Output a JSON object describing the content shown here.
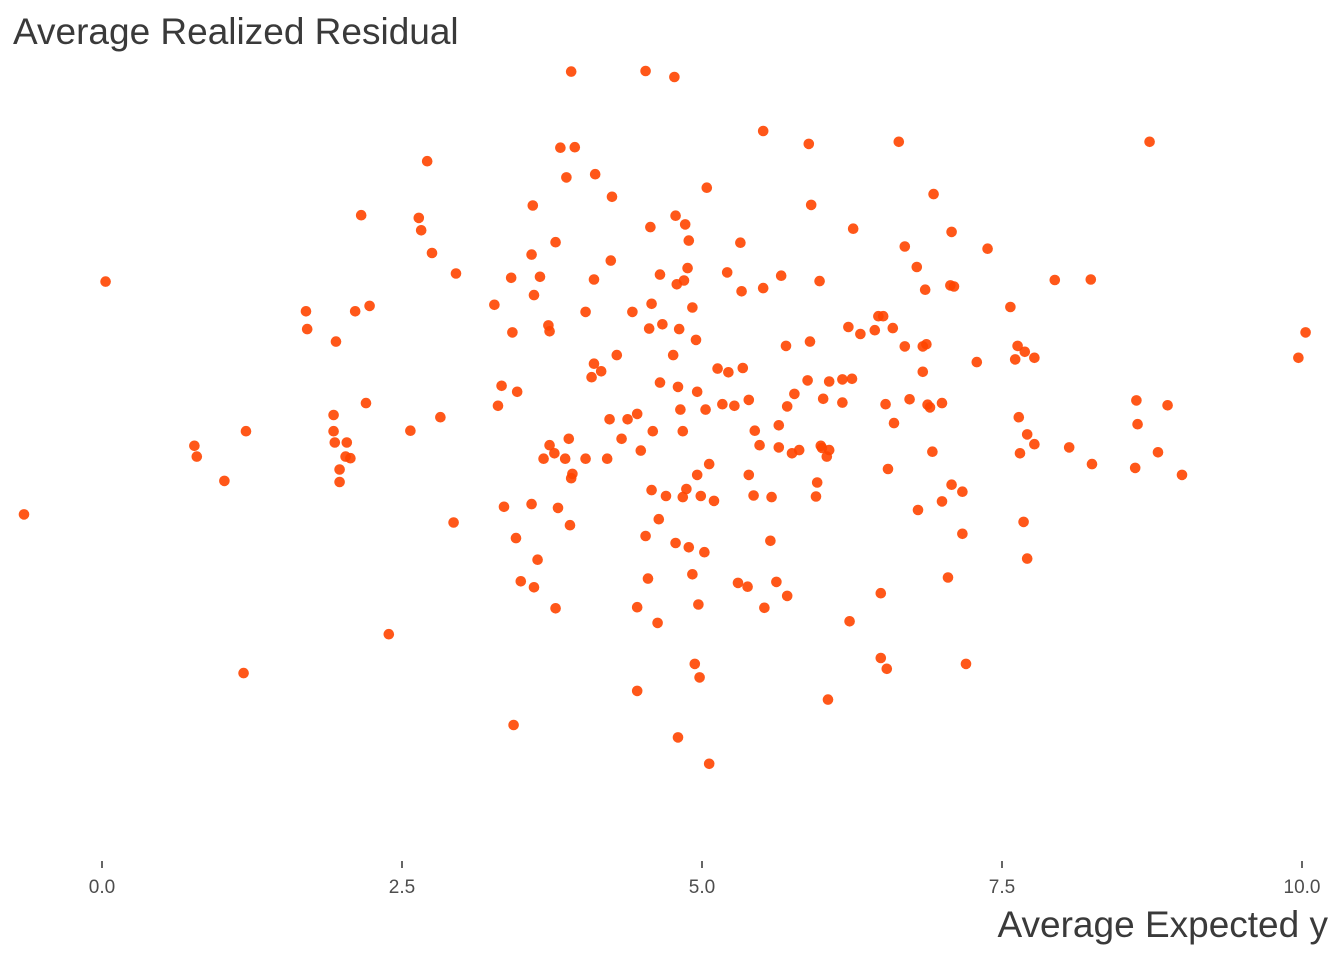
{
  "chart_data": {
    "type": "scatter",
    "title": "Average Realized Residual",
    "xlabel": "Average Expected y",
    "ylabel": "",
    "xlim": [
      -0.85,
      10.35
    ],
    "ylim": [
      -0.5,
      14.5
    ],
    "x_ticks": [
      0,
      2.5,
      5,
      7.5,
      10
    ],
    "x_tick_labels": [
      "0.0",
      "2.5",
      "5.0",
      "7.5",
      "10.0"
    ],
    "grid": false,
    "point_color": "#FF4500",
    "points": [
      [
        3.91,
        13.86
      ],
      [
        4.53,
        13.87
      ],
      [
        4.77,
        13.76
      ],
      [
        5.51,
        12.76
      ],
      [
        5.89,
        12.52
      ],
      [
        6.64,
        12.56
      ],
      [
        8.73,
        12.56
      ],
      [
        3.82,
        12.45
      ],
      [
        3.94,
        12.46
      ],
      [
        2.71,
        12.2
      ],
      [
        3.87,
        11.9
      ],
      [
        4.11,
        11.96
      ],
      [
        5.04,
        11.71
      ],
      [
        6.93,
        11.59
      ],
      [
        4.25,
        11.54
      ],
      [
        3.59,
        11.38
      ],
      [
        5.91,
        11.39
      ],
      [
        2.16,
        11.2
      ],
      [
        2.64,
        11.15
      ],
      [
        4.78,
        11.19
      ],
      [
        4.86,
        11.03
      ],
      [
        4.57,
        10.98
      ],
      [
        6.26,
        10.95
      ],
      [
        2.66,
        10.92
      ],
      [
        3.78,
        10.7
      ],
      [
        4.89,
        10.73
      ],
      [
        5.32,
        10.69
      ],
      [
        7.08,
        10.89
      ],
      [
        6.69,
        10.62
      ],
      [
        7.38,
        10.58
      ],
      [
        2.75,
        10.5
      ],
      [
        3.58,
        10.47
      ],
      [
        4.24,
        10.36
      ],
      [
        4.88,
        10.22
      ],
      [
        6.79,
        10.24
      ],
      [
        2.95,
        10.12
      ],
      [
        3.41,
        10.04
      ],
      [
        3.65,
        10.06
      ],
      [
        4.1,
        10.01
      ],
      [
        4.65,
        10.1
      ],
      [
        4.85,
        9.99
      ],
      [
        5.21,
        10.14
      ],
      [
        5.66,
        10.08
      ],
      [
        5.98,
        9.98
      ],
      [
        0.03,
        9.97
      ],
      [
        7.07,
        9.9
      ],
      [
        7.94,
        10.0
      ],
      [
        8.24,
        10.01
      ],
      [
        4.79,
        9.92
      ],
      [
        5.33,
        9.79
      ],
      [
        5.51,
        9.85
      ],
      [
        6.86,
        9.82
      ],
      [
        7.1,
        9.88
      ],
      [
        3.6,
        9.72
      ],
      [
        4.58,
        9.56
      ],
      [
        3.27,
        9.54
      ],
      [
        4.03,
        9.41
      ],
      [
        4.42,
        9.41
      ],
      [
        4.92,
        9.49
      ],
      [
        7.57,
        9.5
      ],
      [
        1.7,
        9.42
      ],
      [
        2.11,
        9.42
      ],
      [
        2.23,
        9.52
      ],
      [
        6.47,
        9.33
      ],
      [
        6.51,
        9.33
      ],
      [
        1.71,
        9.09
      ],
      [
        3.72,
        9.16
      ],
      [
        3.42,
        9.03
      ],
      [
        3.73,
        9.05
      ],
      [
        4.67,
        9.18
      ],
      [
        4.56,
        9.1
      ],
      [
        4.81,
        9.09
      ],
      [
        6.22,
        9.13
      ],
      [
        6.44,
        9.07
      ],
      [
        6.59,
        9.11
      ],
      [
        6.32,
        9.0
      ],
      [
        1.95,
        8.86
      ],
      [
        4.95,
        8.89
      ],
      [
        5.9,
        8.86
      ],
      [
        6.69,
        8.77
      ],
      [
        6.87,
        8.81
      ],
      [
        6.84,
        8.77
      ],
      [
        7.63,
        8.78
      ],
      [
        7.69,
        8.67
      ],
      [
        5.7,
        8.78
      ],
      [
        9.97,
        8.56
      ],
      [
        10.03,
        9.03
      ],
      [
        4.29,
        8.61
      ],
      [
        4.76,
        8.61
      ],
      [
        7.77,
        8.56
      ],
      [
        7.61,
        8.53
      ],
      [
        7.29,
        8.48
      ],
      [
        4.1,
        8.45
      ],
      [
        4.16,
        8.31
      ],
      [
        5.13,
        8.36
      ],
      [
        5.34,
        8.37
      ],
      [
        5.22,
        8.29
      ],
      [
        4.08,
        8.2
      ],
      [
        5.88,
        8.14
      ],
      [
        6.06,
        8.12
      ],
      [
        6.17,
        8.16
      ],
      [
        6.25,
        8.17
      ],
      [
        4.65,
        8.1
      ],
      [
        6.84,
        8.3
      ],
      [
        3.33,
        8.04
      ],
      [
        4.8,
        8.02
      ],
      [
        3.46,
        7.93
      ],
      [
        4.96,
        7.93
      ],
      [
        5.77,
        7.89
      ],
      [
        2.2,
        7.72
      ],
      [
        5.17,
        7.7
      ],
      [
        5.39,
        7.78
      ],
      [
        5.27,
        7.67
      ],
      [
        5.03,
        7.6
      ],
      [
        6.01,
        7.8
      ],
      [
        6.17,
        7.73
      ],
      [
        6.53,
        7.7
      ],
      [
        6.73,
        7.79
      ],
      [
        7.0,
        7.72
      ],
      [
        8.62,
        7.77
      ],
      [
        8.88,
        7.68
      ],
      [
        3.3,
        7.67
      ],
      [
        5.71,
        7.66
      ],
      [
        6.88,
        7.69
      ],
      [
        6.9,
        7.64
      ],
      [
        1.93,
        7.5
      ],
      [
        2.82,
        7.46
      ],
      [
        4.46,
        7.52
      ],
      [
        4.23,
        7.42
      ],
      [
        4.38,
        7.42
      ],
      [
        4.82,
        7.6
      ],
      [
        1.93,
        7.2
      ],
      [
        1.2,
        7.2
      ],
      [
        2.57,
        7.21
      ],
      [
        4.59,
        7.2
      ],
      [
        4.84,
        7.2
      ],
      [
        5.44,
        7.21
      ],
      [
        5.64,
        7.31
      ],
      [
        6.6,
        7.35
      ],
      [
        7.64,
        7.46
      ],
      [
        8.63,
        7.33
      ],
      [
        7.71,
        7.14
      ],
      [
        3.89,
        7.06
      ],
      [
        4.33,
        7.06
      ],
      [
        1.94,
        6.99
      ],
      [
        2.04,
        6.99
      ],
      [
        3.73,
        6.94
      ],
      [
        0.77,
        6.93
      ],
      [
        6.0,
        6.89
      ],
      [
        5.99,
        6.93
      ],
      [
        5.81,
        6.85
      ],
      [
        5.48,
        6.94
      ],
      [
        5.64,
        6.9
      ],
      [
        5.75,
        6.79
      ],
      [
        6.06,
        6.85
      ],
      [
        4.49,
        6.84
      ],
      [
        3.77,
        6.79
      ],
      [
        8.06,
        6.9
      ],
      [
        7.77,
        6.96
      ],
      [
        8.8,
        6.81
      ],
      [
        2.03,
        6.73
      ],
      [
        2.07,
        6.7
      ],
      [
        0.79,
        6.73
      ],
      [
        3.68,
        6.69
      ],
      [
        3.86,
        6.69
      ],
      [
        4.03,
        6.69
      ],
      [
        4.21,
        6.69
      ],
      [
        5.06,
        6.59
      ],
      [
        6.04,
        6.73
      ],
      [
        7.65,
        6.79
      ],
      [
        6.92,
        6.82
      ],
      [
        1.98,
        6.49
      ],
      [
        8.25,
        6.59
      ],
      [
        9.0,
        6.39
      ],
      [
        8.61,
        6.52
      ],
      [
        6.55,
        6.5
      ],
      [
        3.92,
        6.41
      ],
      [
        4.96,
        6.39
      ],
      [
        5.39,
        6.39
      ],
      [
        1.02,
        6.28
      ],
      [
        1.98,
        6.26
      ],
      [
        3.91,
        6.33
      ],
      [
        5.96,
        6.25
      ],
      [
        4.58,
        6.11
      ],
      [
        4.87,
        6.13
      ],
      [
        4.7,
        6.0
      ],
      [
        4.84,
        5.98
      ],
      [
        4.99,
        6.0
      ],
      [
        5.1,
        5.91
      ],
      [
        5.43,
        6.01
      ],
      [
        5.58,
        5.98
      ],
      [
        5.95,
        5.99
      ],
      [
        7.08,
        6.21
      ],
      [
        7.17,
        6.08
      ],
      [
        3.35,
        5.8
      ],
      [
        3.58,
        5.85
      ],
      [
        3.8,
        5.78
      ],
      [
        7.0,
        5.9
      ],
      [
        6.8,
        5.74
      ],
      [
        4.64,
        5.57
      ],
      [
        2.93,
        5.51
      ],
      [
        3.9,
        5.46
      ],
      [
        7.68,
        5.52
      ],
      [
        7.17,
        5.3
      ],
      [
        3.45,
        5.22
      ],
      [
        4.78,
        5.13
      ],
      [
        4.89,
        5.05
      ],
      [
        5.57,
        5.17
      ],
      [
        4.53,
        5.26
      ],
      [
        5.02,
        4.96
      ],
      [
        3.63,
        4.82
      ],
      [
        7.71,
        4.84
      ],
      [
        4.92,
        4.55
      ],
      [
        5.3,
        4.39
      ],
      [
        5.38,
        4.32
      ],
      [
        5.62,
        4.41
      ],
      [
        3.49,
        4.42
      ],
      [
        3.6,
        4.31
      ],
      [
        4.55,
        4.47
      ],
      [
        7.05,
        4.49
      ],
      [
        5.71,
        4.15
      ],
      [
        6.49,
        4.2
      ],
      [
        3.78,
        3.92
      ],
      [
        4.46,
        3.94
      ],
      [
        4.97,
        3.99
      ],
      [
        5.52,
        3.93
      ],
      [
        6.23,
        3.68
      ],
      [
        4.63,
        3.65
      ],
      [
        2.39,
        3.44
      ],
      [
        6.49,
        3.0
      ],
      [
        7.2,
        2.89
      ],
      [
        4.94,
        2.89
      ],
      [
        6.54,
        2.8
      ],
      [
        1.18,
        2.72
      ],
      [
        4.98,
        2.64
      ],
      [
        4.46,
        2.39
      ],
      [
        6.05,
        2.23
      ],
      [
        3.43,
        1.76
      ],
      [
        4.8,
        1.53
      ],
      [
        5.06,
        1.04
      ],
      [
        -0.65,
        5.66
      ]
    ]
  }
}
